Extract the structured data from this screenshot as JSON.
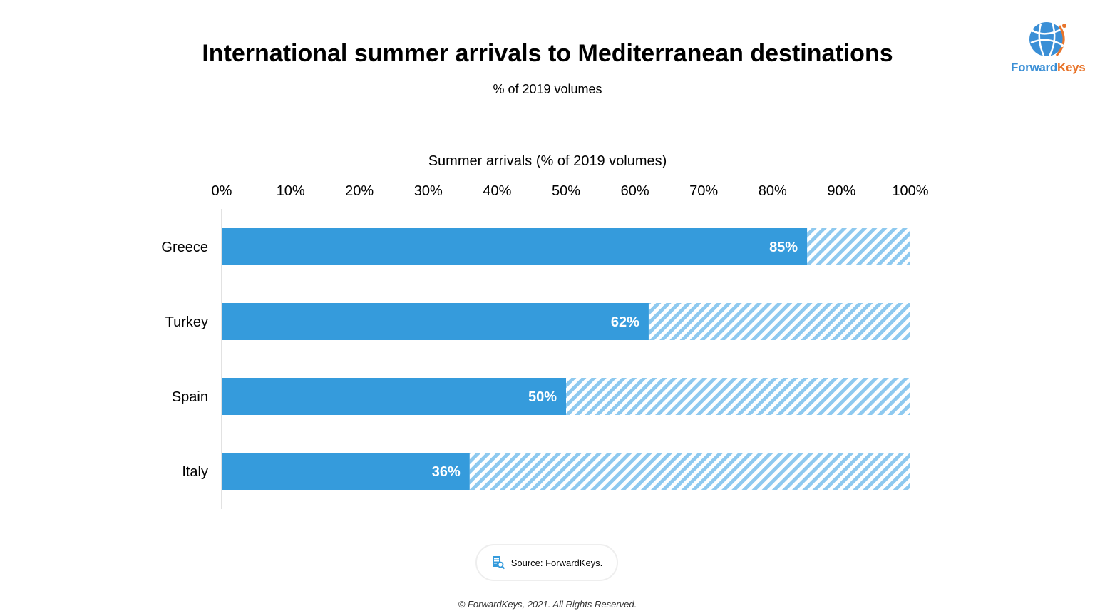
{
  "header": {
    "title": "International summer arrivals to Mediterranean destinations",
    "subtitle": "% of 2019 volumes"
  },
  "logo": {
    "icon": "globe-network-icon",
    "text_part1": "Forward",
    "text_part2": "Keys",
    "colors": {
      "blue": "#3a8fd6",
      "orange": "#e8742a"
    }
  },
  "chart_data": {
    "type": "bar",
    "orientation": "horizontal",
    "xlabel": "Summer arrivals (% of 2019 volumes)",
    "xlim": [
      0,
      100
    ],
    "xticks": [
      "0%",
      "10%",
      "20%",
      "30%",
      "40%",
      "50%",
      "60%",
      "70%",
      "80%",
      "90%",
      "100%"
    ],
    "categories": [
      "Greece",
      "Turkey",
      "Spain",
      "Italy"
    ],
    "values": [
      85,
      62,
      50,
      36
    ],
    "data_labels": [
      "85%",
      "62%",
      "50%",
      "36%"
    ],
    "remainder_to": 100,
    "remainder_style": "hatched",
    "colors": {
      "bar": "#359bdc",
      "hatch": "#8ec9ef"
    },
    "grid": false,
    "axis_position": "top"
  },
  "footer": {
    "source": "Source: ForwardKeys.",
    "source_icon": "document-search-icon",
    "copyright": "© ForwardKeys, 2021. All Rights Reserved."
  }
}
